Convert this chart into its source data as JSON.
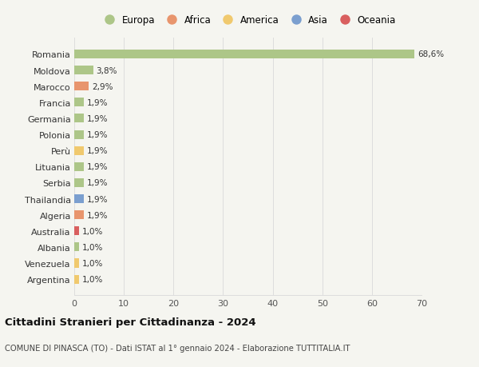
{
  "countries": [
    "Romania",
    "Moldova",
    "Marocco",
    "Francia",
    "Germania",
    "Polonia",
    "Perù",
    "Lituania",
    "Serbia",
    "Thailandia",
    "Algeria",
    "Australia",
    "Albania",
    "Venezuela",
    "Argentina"
  ],
  "values": [
    68.6,
    3.8,
    2.9,
    1.9,
    1.9,
    1.9,
    1.9,
    1.9,
    1.9,
    1.9,
    1.9,
    1.0,
    1.0,
    1.0,
    1.0
  ],
  "labels": [
    "68,6%",
    "3,8%",
    "2,9%",
    "1,9%",
    "1,9%",
    "1,9%",
    "1,9%",
    "1,9%",
    "1,9%",
    "1,9%",
    "1,9%",
    "1,0%",
    "1,0%",
    "1,0%",
    "1,0%"
  ],
  "colors": [
    "#adc688",
    "#adc688",
    "#e8956d",
    "#adc688",
    "#adc688",
    "#adc688",
    "#f0c96e",
    "#adc688",
    "#adc688",
    "#7b9fcf",
    "#e8956d",
    "#d95f5f",
    "#adc688",
    "#f0c96e",
    "#f0c96e"
  ],
  "legend_labels": [
    "Europa",
    "Africa",
    "America",
    "Asia",
    "Oceania"
  ],
  "legend_colors": [
    "#adc688",
    "#e8956d",
    "#f0c96e",
    "#7b9fcf",
    "#d95f5f"
  ],
  "xlim": [
    0,
    70
  ],
  "xticks": [
    0,
    10,
    20,
    30,
    40,
    50,
    60,
    70
  ],
  "title": "Cittadini Stranieri per Cittadinanza - 2024",
  "subtitle": "COMUNE DI PINASCA (TO) - Dati ISTAT al 1° gennaio 2024 - Elaborazione TUTTITALIA.IT",
  "background_color": "#f5f5f0",
  "grid_color": "#dddddd",
  "bar_height": 0.55
}
